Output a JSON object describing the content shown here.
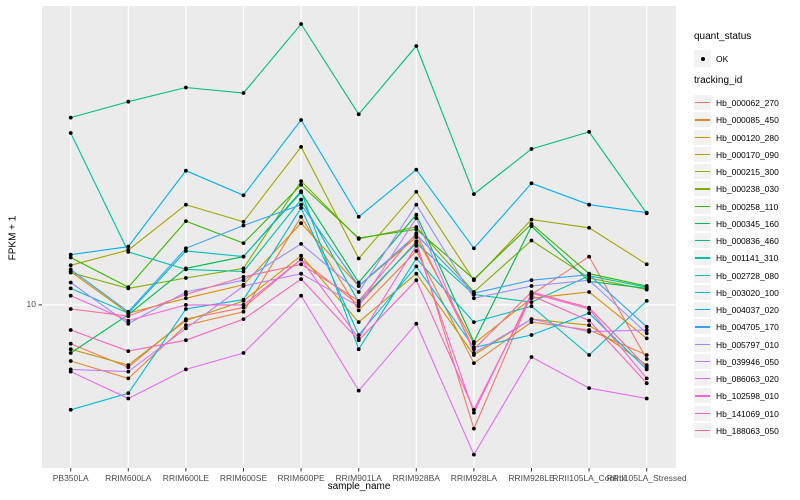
{
  "figure": {
    "background": "#FFFFFF",
    "panel_bg": "#EBEBEB",
    "grid_color": "#FFFFFF",
    "tick_color": "#333333",
    "tick_label_color": "#4D4D4D",
    "point_color": "#000000",
    "y_axis_title": "FPKM + 1",
    "x_axis_title": "sample_name",
    "y_tick_label": "10"
  },
  "legend": {
    "quant_status_title": "quant_status",
    "quant_status_items": [
      {
        "label": "OK",
        "glyph": "point-icon",
        "color": "#000000"
      }
    ],
    "tracking_id_title": "tracking_id"
  },
  "chart_data": {
    "type": "line",
    "title": "",
    "xlabel": "sample_name",
    "ylabel": "FPKM + 1",
    "y_scale": "log10",
    "y_major_breaks": [
      10
    ],
    "ylim": [
      3.0,
      91.0
    ],
    "grid": "major",
    "legend_position": "right",
    "point_marker": "black-dot",
    "x_categories": [
      "PB350LA",
      "RRIM600LA",
      "RRIM600LE",
      "RRIM600SE",
      "RRIM600PE",
      "RRIM901LA",
      "RRIM928BA",
      "RRIM928LA",
      "RRIM928LE",
      "RRII105LA_Control",
      "RRII105LA_Stressed"
    ],
    "series": [
      {
        "name": "Hb_000062_270",
        "color": "#F8766D",
        "values": [
          7.5,
          6.3,
          9.0,
          9.8,
          14.0,
          10.0,
          16.0,
          4.0,
          10.8,
          14.3,
          6.7
        ]
      },
      {
        "name": "Hb_000085_450",
        "color": "#EA8331",
        "values": [
          6.6,
          5.8,
          8.6,
          9.5,
          19.2,
          9.6,
          14.9,
          6.5,
          8.8,
          8.3,
          6.9
        ]
      },
      {
        "name": "Hb_000120_280",
        "color": "#D89000",
        "values": [
          12.8,
          9.4,
          10.5,
          11.6,
          18.3,
          11.5,
          16.5,
          7.5,
          10.5,
          11.0,
          7.8
        ]
      },
      {
        "name": "Hb_000170_090",
        "color": "#C09B00",
        "values": [
          7.2,
          6.4,
          8.9,
          10.3,
          14.4,
          8.8,
          12.6,
          6.9,
          9.0,
          8.6,
          6.4
        ]
      },
      {
        "name": "Hb_000215_300",
        "color": "#A3A500",
        "values": [
          13.4,
          15.0,
          21.0,
          18.5,
          32.2,
          14.1,
          23.1,
          12.0,
          18.8,
          17.7,
          13.5
        ]
      },
      {
        "name": "Hb_000238_030",
        "color": "#7CAE00",
        "values": [
          12.7,
          11.3,
          12.2,
          13.1,
          25.0,
          16.3,
          17.8,
          11.0,
          16.1,
          12.2,
          11.2
        ]
      },
      {
        "name": "Hb_000258_110",
        "color": "#39B600",
        "values": [
          14.2,
          11.4,
          18.6,
          15.8,
          24.3,
          16.4,
          17.5,
          12.1,
          18.2,
          12.6,
          11.5
        ]
      },
      {
        "name": "Hb_000345_160",
        "color": "#00BB4E",
        "values": [
          7.0,
          9.3,
          13.1,
          14.3,
          23.0,
          11.8,
          19.5,
          7.6,
          17.9,
          11.9,
          11.3
        ]
      },
      {
        "name": "Hb_000836_460",
        "color": "#00BF7D",
        "values": [
          40.0,
          45.0,
          50.0,
          48.0,
          80.0,
          41.0,
          68.0,
          22.7,
          31.7,
          36.0,
          19.7
        ]
      },
      {
        "name": "Hb_001141_310",
        "color": "#00C1A3",
        "values": [
          35.7,
          14.8,
          13.0,
          12.8,
          21.8,
          10.2,
          15.8,
          10.8,
          10.2,
          12.4,
          11.4
        ]
      },
      {
        "name": "Hb_002728_080",
        "color": "#00BFC4",
        "values": [
          11.3,
          9.4,
          14.9,
          14.3,
          23.2,
          7.2,
          14.1,
          8.8,
          9.9,
          6.9,
          10.3
        ]
      },
      {
        "name": "Hb_003020_100",
        "color": "#00BAE0",
        "values": [
          4.6,
          5.2,
          9.7,
          10.4,
          20.5,
          8.0,
          13.3,
          7.3,
          8.0,
          9.4,
          6.2
        ]
      },
      {
        "name": "Hb_004037_020",
        "color": "#00B0F6",
        "values": [
          14.5,
          15.4,
          27.0,
          22.5,
          39.3,
          19.2,
          27.2,
          15.2,
          24.6,
          21.0,
          19.8
        ]
      },
      {
        "name": "Hb_004705_170",
        "color": "#35A2FF",
        "values": [
          13.0,
          9.5,
          15.2,
          18.0,
          21.0,
          11.5,
          16.8,
          10.9,
          12.0,
          12.5,
          8.5
        ]
      },
      {
        "name": "Hb_005797_010",
        "color": "#9590FF",
        "values": [
          11.8,
          8.7,
          11.0,
          12.0,
          15.7,
          11.0,
          21.0,
          10.5,
          11.5,
          12.0,
          8.1
        ]
      },
      {
        "name": "Hb_039946_050",
        "color": "#C77CFF",
        "values": [
          6.2,
          6.1,
          8.4,
          11.5,
          12.6,
          9.9,
          19.0,
          7.0,
          9.0,
          8.2,
          8.3
        ]
      },
      {
        "name": "Hb_086063_020",
        "color": "#E76BF3",
        "values": [
          6.1,
          5.0,
          6.2,
          7.0,
          10.7,
          5.3,
          8.7,
          3.3,
          6.8,
          5.4,
          5.0
        ]
      },
      {
        "name": "Hb_102598_010",
        "color": "#FA62DB",
        "values": [
          10.7,
          8.9,
          10.0,
          10.0,
          14.0,
          7.8,
          15.5,
          4.5,
          10.9,
          9.7,
          5.8
        ]
      },
      {
        "name": "Hb_141069_010",
        "color": "#FF62BC",
        "values": [
          8.3,
          7.1,
          7.7,
          9.0,
          12.1,
          7.7,
          12.0,
          4.6,
          10.7,
          8.9,
          5.6
        ]
      },
      {
        "name": "Hb_188063_050",
        "color": "#FF6A98",
        "values": [
          9.7,
          9.2,
          10.8,
          12.3,
          13.5,
          10.3,
          17.0,
          7.2,
          11.0,
          9.8,
          6.3
        ]
      }
    ]
  }
}
